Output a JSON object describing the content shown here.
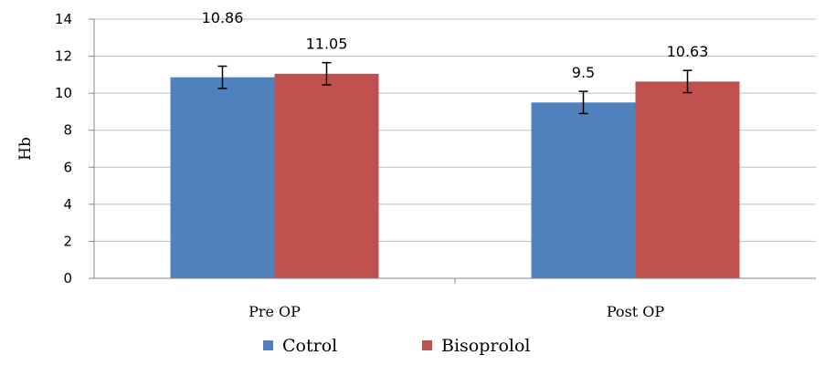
{
  "chart_data": {
    "type": "bar",
    "categories": [
      "Pre OP",
      "Post OP"
    ],
    "series": [
      {
        "name": "Cotrol",
        "values": [
          10.86,
          9.5
        ],
        "error": [
          0.6,
          0.6
        ],
        "color": "#4f81bd"
      },
      {
        "name": "Bisoprolol",
        "values": [
          11.05,
          10.63
        ],
        "error": [
          0.6,
          0.6
        ],
        "color": "#c0504d"
      }
    ],
    "data_labels": [
      [
        "10.86",
        "9.5"
      ],
      [
        "11.05",
        "10.63"
      ]
    ],
    "ylabel": "Hb",
    "xlabel": "",
    "ylim": [
      0,
      14
    ],
    "yticks": [
      0,
      2,
      4,
      6,
      8,
      10,
      12,
      14
    ],
    "grid": true,
    "legend": "bottom-center"
  }
}
